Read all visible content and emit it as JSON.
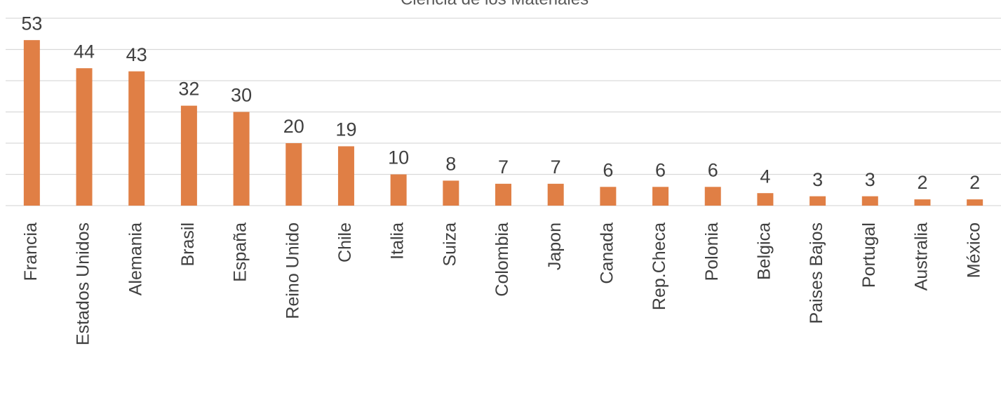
{
  "chart_data": {
    "type": "bar",
    "title": "Ciencia de los Materiales",
    "categories": [
      "Francia",
      "Estados Unidos",
      "Alemania",
      "Brasil",
      "España",
      "Reino Unido",
      "Chile",
      "Italia",
      "Suiza",
      "Colombia",
      "Japon",
      "Canada",
      "Rep.Checa",
      "Polonia",
      "Belgica",
      "Paises Bajos",
      "Portugal",
      "Australia",
      "México"
    ],
    "values": [
      53,
      44,
      43,
      32,
      30,
      20,
      19,
      10,
      8,
      7,
      7,
      6,
      6,
      6,
      4,
      3,
      3,
      2,
      2
    ],
    "color": "#e07f45",
    "ylim": [
      0,
      60
    ],
    "yticks": [
      0,
      10,
      20,
      30,
      40,
      50,
      60
    ],
    "grid": true
  }
}
